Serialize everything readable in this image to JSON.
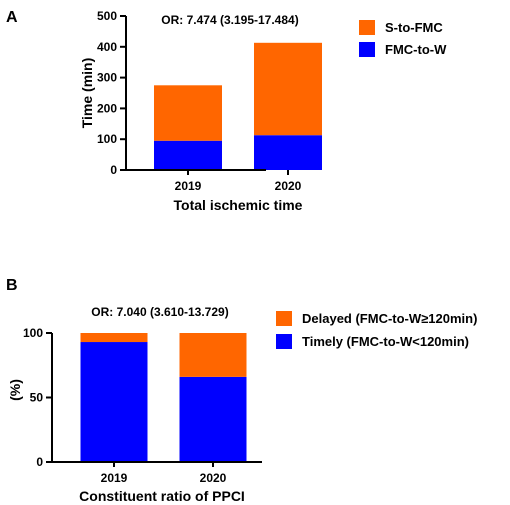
{
  "chart_data": [
    {
      "panel": "A",
      "type": "bar",
      "stacked": true,
      "categories": [
        "2019",
        "2020"
      ],
      "series": [
        {
          "name": "FMC-to-W",
          "color": "#0000ff",
          "values": [
            95,
            113
          ]
        },
        {
          "name": "S-to-FMC",
          "color": "#ff6600",
          "values": [
            180,
            300
          ]
        }
      ],
      "annotation": "OR: 7.474 (3.195-17.484)",
      "xlabel": "Total ischemic time",
      "ylabel": "Time (min)",
      "ylim": [
        0,
        500
      ],
      "yticks": [
        "0",
        "100",
        "200",
        "300",
        "400",
        "500"
      ],
      "legend_position": "right"
    },
    {
      "panel": "B",
      "type": "bar",
      "stacked": true,
      "categories": [
        "2019",
        "2020"
      ],
      "series": [
        {
          "name": "Timely  (FMC-to-W<120min)",
          "color": "#0000ff",
          "values": [
            93,
            66
          ]
        },
        {
          "name": "Delayed  (FMC-to-W≥120min)",
          "color": "#ff6600",
          "values": [
            7,
            34
          ]
        }
      ],
      "annotation": "OR: 7.040 (3.610-13.729)",
      "xlabel": "Constituent ratio of PPCI",
      "ylabel": "(%)",
      "ylim": [
        0,
        100
      ],
      "yticks": [
        "0",
        "50",
        "100"
      ],
      "legend_position": "right"
    }
  ]
}
